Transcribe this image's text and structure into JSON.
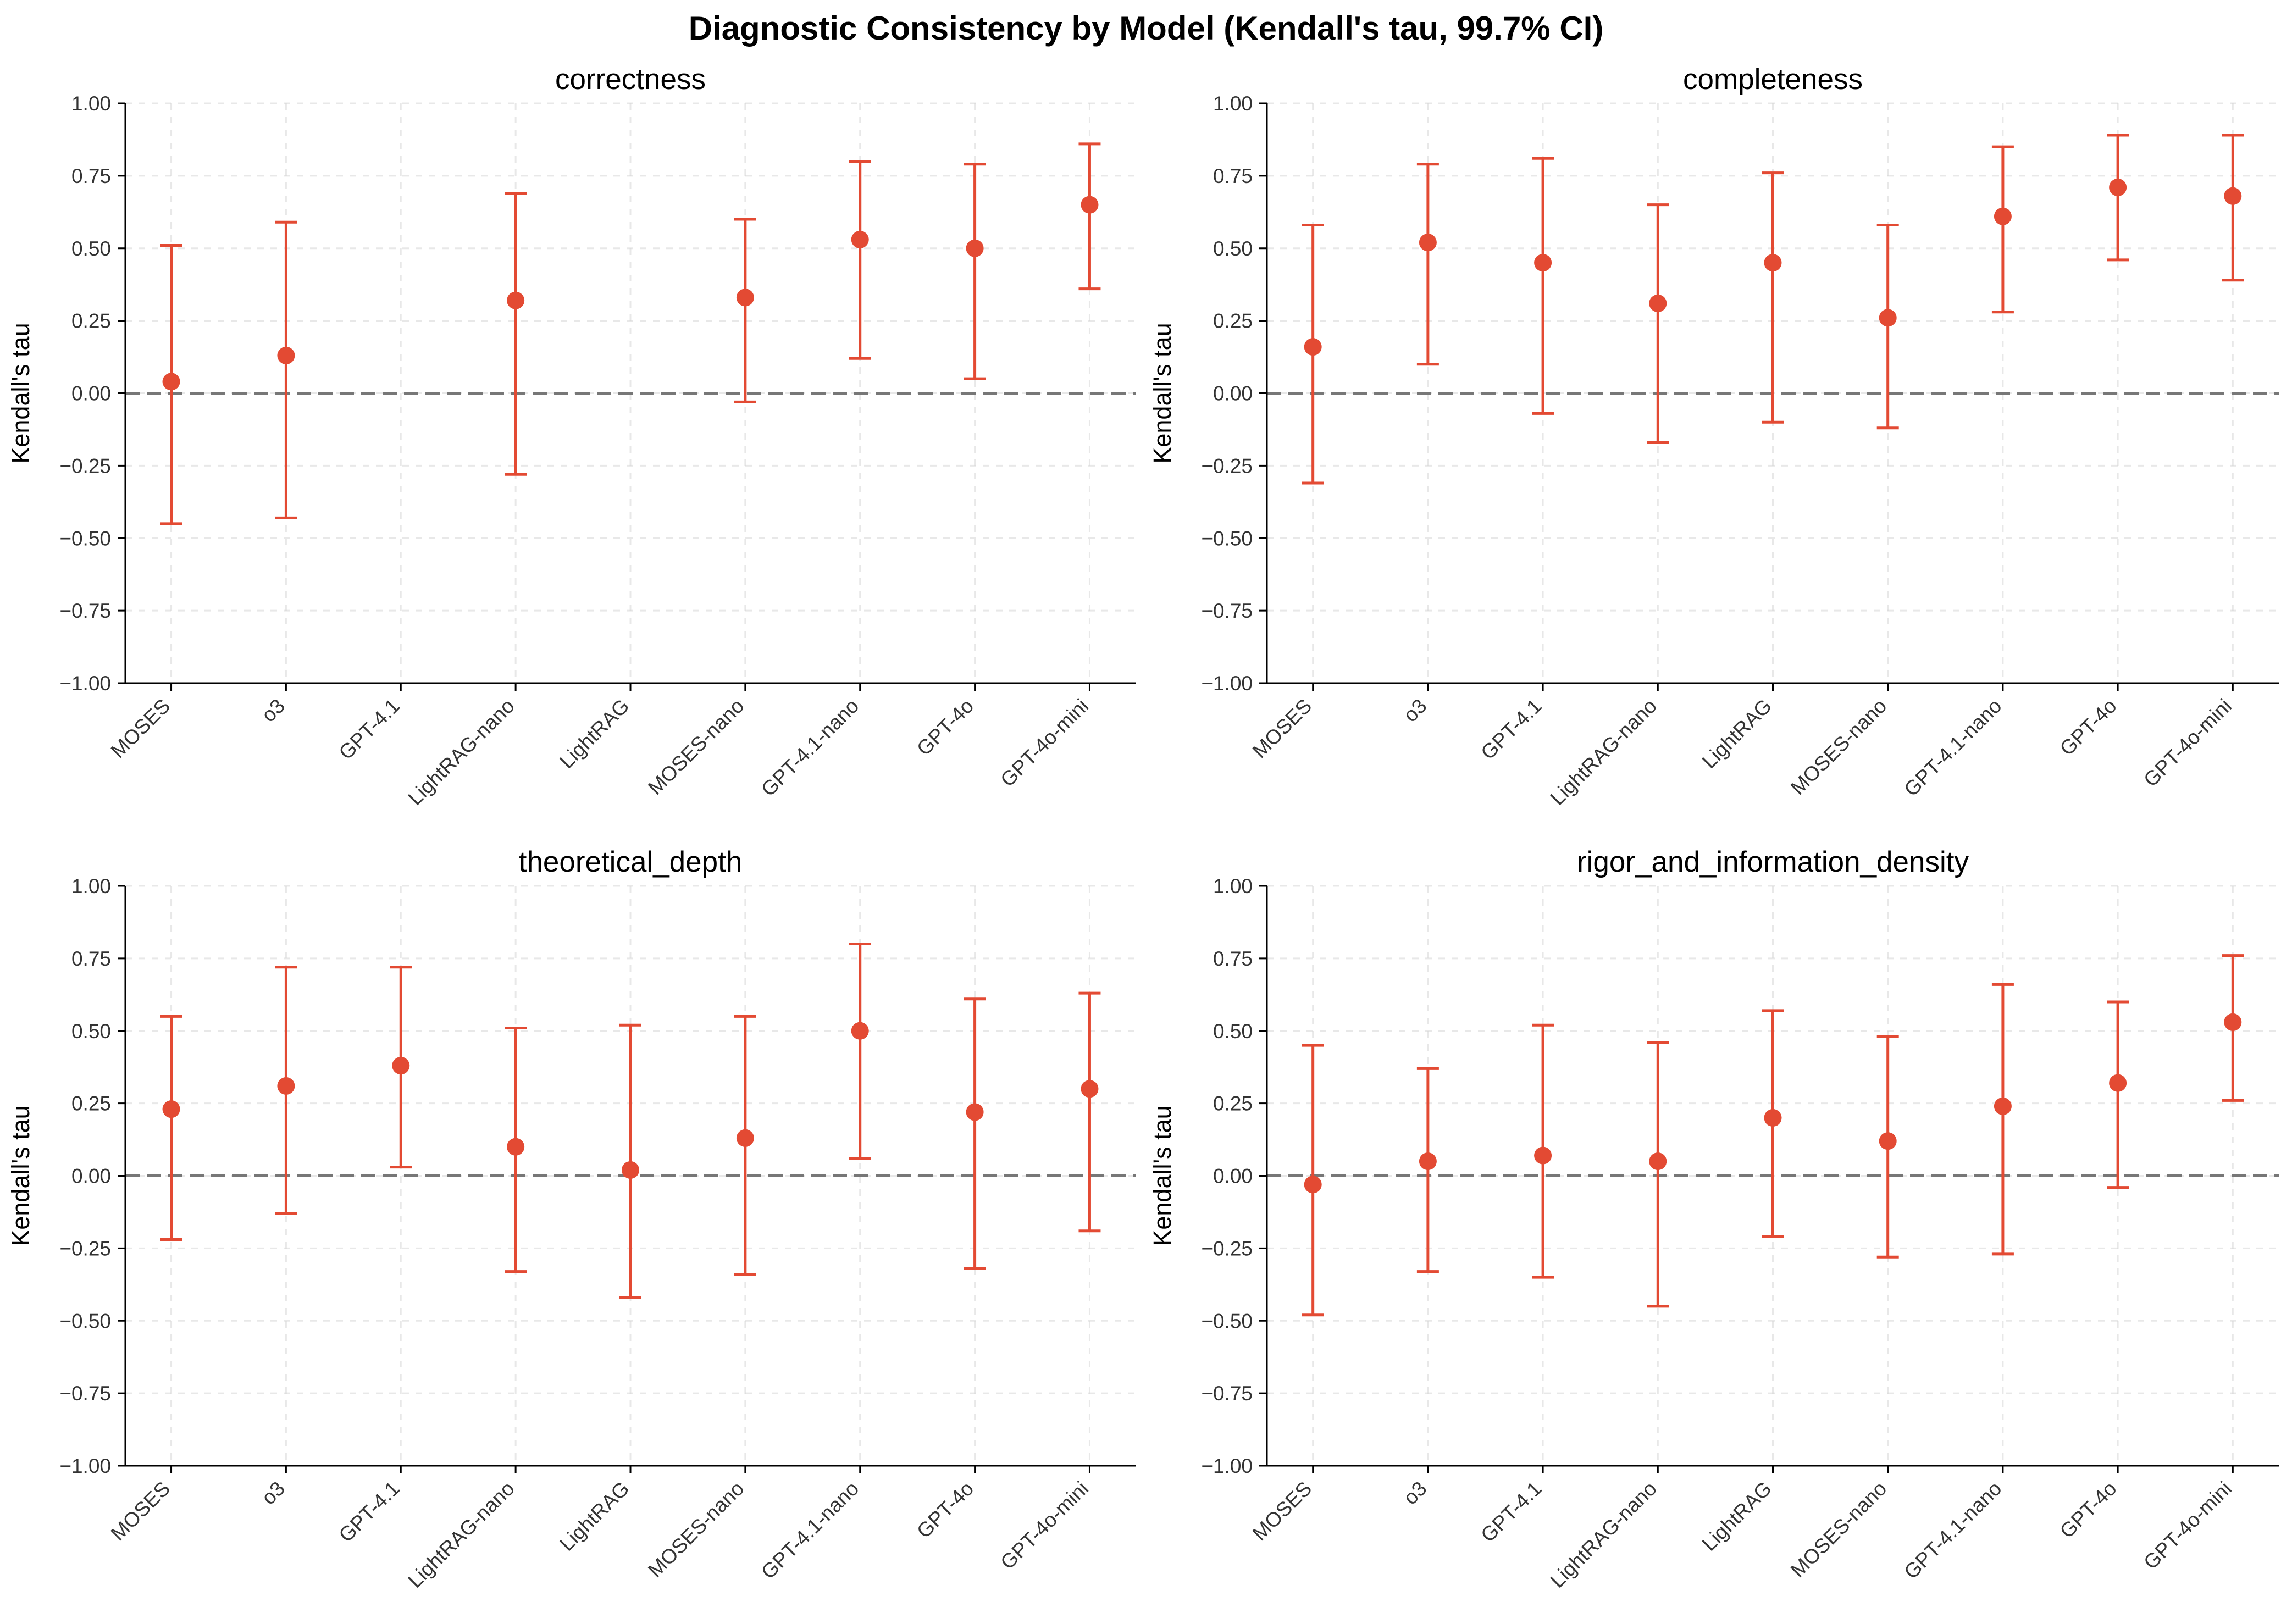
{
  "chart_data": {
    "title": "Diagnostic Consistency by Model (Kendall's tau, 99.7% CI)",
    "type": "scatter",
    "categories": [
      "MOSES",
      "o3",
      "GPT-4.1",
      "LightRAG-nano",
      "LightRAG",
      "MOSES-nano",
      "GPT-4.1-nano",
      "GPT-4o",
      "GPT-4o-mini"
    ],
    "ylabel": "Kendall's tau",
    "ylim": [
      -1.0,
      1.0
    ],
    "yticks": [
      "−1.00",
      "−0.75",
      "−0.50",
      "−0.25",
      "0.00",
      "0.25",
      "0.50",
      "0.75",
      "1.00"
    ],
    "reference_line": 0.0,
    "grid": true,
    "color": "#e34a33",
    "panels": [
      {
        "title": "correctness",
        "series": [
          {
            "category": "MOSES",
            "value": 0.04,
            "lower": -0.45,
            "upper": 0.51
          },
          {
            "category": "o3",
            "value": 0.13,
            "lower": -0.43,
            "upper": 0.59
          },
          {
            "category": "GPT-4.1",
            "value": null,
            "lower": null,
            "upper": null
          },
          {
            "category": "LightRAG-nano",
            "value": 0.32,
            "lower": -0.28,
            "upper": 0.69
          },
          {
            "category": "LightRAG",
            "value": null,
            "lower": null,
            "upper": null
          },
          {
            "category": "MOSES-nano",
            "value": 0.33,
            "lower": -0.03,
            "upper": 0.6
          },
          {
            "category": "GPT-4.1-nano",
            "value": 0.53,
            "lower": 0.12,
            "upper": 0.8
          },
          {
            "category": "GPT-4o",
            "value": 0.5,
            "lower": 0.05,
            "upper": 0.79
          },
          {
            "category": "GPT-4o-mini",
            "value": 0.65,
            "lower": 0.36,
            "upper": 0.86
          }
        ]
      },
      {
        "title": "completeness",
        "series": [
          {
            "category": "MOSES",
            "value": 0.16,
            "lower": -0.31,
            "upper": 0.58
          },
          {
            "category": "o3",
            "value": 0.52,
            "lower": 0.1,
            "upper": 0.79
          },
          {
            "category": "GPT-4.1",
            "value": 0.45,
            "lower": -0.07,
            "upper": 0.81
          },
          {
            "category": "LightRAG-nano",
            "value": 0.31,
            "lower": -0.17,
            "upper": 0.65
          },
          {
            "category": "LightRAG",
            "value": 0.45,
            "lower": -0.1,
            "upper": 0.76
          },
          {
            "category": "MOSES-nano",
            "value": 0.26,
            "lower": -0.12,
            "upper": 0.58
          },
          {
            "category": "GPT-4.1-nano",
            "value": 0.61,
            "lower": 0.28,
            "upper": 0.85
          },
          {
            "category": "GPT-4o",
            "value": 0.71,
            "lower": 0.46,
            "upper": 0.89
          },
          {
            "category": "GPT-4o-mini",
            "value": 0.68,
            "lower": 0.39,
            "upper": 0.89
          }
        ]
      },
      {
        "title": "theoretical_depth",
        "series": [
          {
            "category": "MOSES",
            "value": 0.23,
            "lower": -0.22,
            "upper": 0.55
          },
          {
            "category": "o3",
            "value": 0.31,
            "lower": -0.13,
            "upper": 0.72
          },
          {
            "category": "GPT-4.1",
            "value": 0.38,
            "lower": 0.03,
            "upper": 0.72
          },
          {
            "category": "LightRAG-nano",
            "value": 0.1,
            "lower": -0.33,
            "upper": 0.51
          },
          {
            "category": "LightRAG",
            "value": 0.02,
            "lower": -0.42,
            "upper": 0.52
          },
          {
            "category": "MOSES-nano",
            "value": 0.13,
            "lower": -0.34,
            "upper": 0.55
          },
          {
            "category": "GPT-4.1-nano",
            "value": 0.5,
            "lower": 0.06,
            "upper": 0.8
          },
          {
            "category": "GPT-4o",
            "value": 0.22,
            "lower": -0.32,
            "upper": 0.61
          },
          {
            "category": "GPT-4o-mini",
            "value": 0.3,
            "lower": -0.19,
            "upper": 0.63
          }
        ]
      },
      {
        "title": "rigor_and_information_density",
        "series": [
          {
            "category": "MOSES",
            "value": -0.03,
            "lower": -0.48,
            "upper": 0.45
          },
          {
            "category": "o3",
            "value": 0.05,
            "lower": -0.33,
            "upper": 0.37
          },
          {
            "category": "GPT-4.1",
            "value": 0.07,
            "lower": -0.35,
            "upper": 0.52
          },
          {
            "category": "LightRAG-nano",
            "value": 0.05,
            "lower": -0.45,
            "upper": 0.46
          },
          {
            "category": "LightRAG",
            "value": 0.2,
            "lower": -0.21,
            "upper": 0.57
          },
          {
            "category": "MOSES-nano",
            "value": 0.12,
            "lower": -0.28,
            "upper": 0.48
          },
          {
            "category": "GPT-4.1-nano",
            "value": 0.24,
            "lower": -0.27,
            "upper": 0.66
          },
          {
            "category": "GPT-4o",
            "value": 0.32,
            "lower": -0.04,
            "upper": 0.6
          },
          {
            "category": "GPT-4o-mini",
            "value": 0.53,
            "lower": 0.26,
            "upper": 0.76
          }
        ]
      }
    ]
  }
}
